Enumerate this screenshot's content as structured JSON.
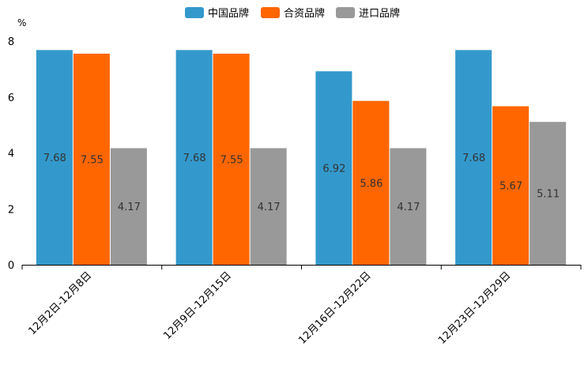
{
  "chart_data": {
    "type": "bar",
    "ylabel": "%",
    "ylim": [
      0,
      8
    ],
    "yticks": [
      0,
      2,
      4,
      6,
      8
    ],
    "categories": [
      "12月2日-12月8日",
      "12月9日-12月15日",
      "12月16日-12月22日",
      "12月23日-12月29日"
    ],
    "series": [
      {
        "name": "中国品牌",
        "color": "#3399cc",
        "values": [
          7.68,
          7.68,
          6.92,
          7.68
        ]
      },
      {
        "name": "合资品牌",
        "color": "#ff6600",
        "values": [
          7.55,
          7.55,
          5.86,
          5.67
        ]
      },
      {
        "name": "进口品牌",
        "color": "#999999",
        "values": [
          4.17,
          4.17,
          4.17,
          5.11
        ]
      }
    ],
    "legend_position": "top-center"
  }
}
